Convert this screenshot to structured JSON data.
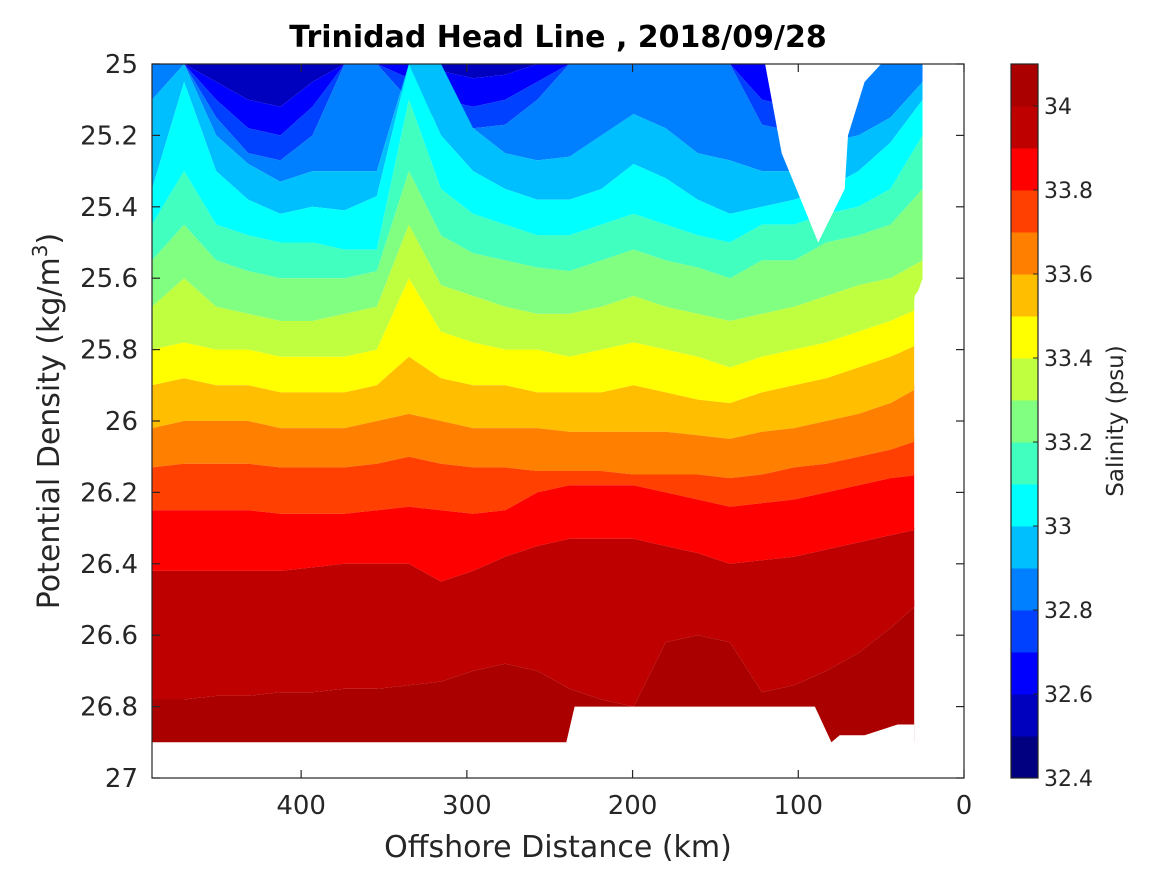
{
  "chart_data": {
    "type": "contour",
    "title": "Trinidad Head Line , 2018/09/28",
    "xlabel": "Offshore Distance (km)",
    "ylabel": "Potential Density (kg/m",
    "ylabel_sup": "3",
    "ylabel_close": ")",
    "xlim": [
      490,
      0
    ],
    "ylim": [
      25,
      27
    ],
    "x_reversed": true,
    "y_reversed": true,
    "x_ticks": [
      400,
      300,
      200,
      100,
      0
    ],
    "x_tick_labels": [
      "400",
      "300",
      "200",
      "100",
      "0"
    ],
    "y_ticks": [
      25,
      25.2,
      25.4,
      25.6,
      25.8,
      26,
      26.2,
      26.4,
      26.6,
      26.8,
      27
    ],
    "y_tick_labels": [
      "25",
      "25.2",
      "25.4",
      "25.6",
      "25.8",
      "26",
      "26.2",
      "26.4",
      "26.6",
      "26.8",
      "27"
    ],
    "colorbar": {
      "label": "Salinity (psu)",
      "min": 32.4,
      "max": 34.1,
      "levels": [
        32.4,
        32.5,
        32.6,
        32.7,
        32.8,
        32.9,
        33.0,
        33.1,
        33.2,
        33.3,
        33.4,
        33.5,
        33.6,
        33.7,
        33.8,
        33.9,
        34.0,
        34.1
      ],
      "tick_values": [
        32.4,
        32.6,
        32.8,
        33,
        33.2,
        33.4,
        33.6,
        33.8,
        34
      ],
      "tick_labels": [
        "32.4",
        "32.6",
        "32.8",
        "33",
        "33.2",
        "33.4",
        "33.6",
        "33.8",
        "34"
      ],
      "colors": [
        "#000080",
        "#0000bf",
        "#0000ff",
        "#0040ff",
        "#0080ff",
        "#00bfff",
        "#00ffff",
        "#40ffbf",
        "#80ff80",
        "#bfff40",
        "#ffff00",
        "#ffbf00",
        "#ff8000",
        "#ff4000",
        "#ff0000",
        "#bf0000",
        "#aa0000"
      ]
    },
    "domain_right_km": [
      25,
      25,
      25,
      25,
      25,
      25,
      25,
      30,
      30,
      30,
      30,
      30,
      30,
      30,
      30,
      30,
      30,
      30,
      30
    ],
    "domain_right_rho": [
      25.0,
      25.2,
      25.4,
      25.5,
      25.55,
      25.6,
      25.62,
      25.65,
      25.7,
      25.8,
      25.9,
      26.0,
      26.2,
      26.4,
      26.6,
      26.8,
      26.9,
      26.95,
      27.0
    ],
    "boundaries": [
      {
        "level": 32.6,
        "rho": [
          25.0,
          25.0,
          25.05,
          25.1,
          25.12,
          25.05,
          25.0,
          25.0,
          25.0,
          25.02,
          25.04,
          25.03,
          25.0,
          25.0,
          25.0,
          25.0,
          25.0,
          25.0,
          25.0,
          25.0,
          25.0,
          25.0,
          25.0,
          25.0,
          25.0
        ]
      },
      {
        "level": 32.7,
        "rho": [
          25.0,
          25.0,
          25.1,
          25.18,
          25.2,
          25.12,
          25.0,
          25.0,
          25.04,
          25.1,
          25.12,
          25.1,
          25.05,
          25.0,
          25.0,
          25.0,
          25.0,
          25.0,
          25.0,
          25.1,
          25.12,
          25.0,
          25.0,
          25.0,
          25.0
        ]
      },
      {
        "level": 32.8,
        "rho": [
          25.0,
          25.0,
          25.15,
          25.25,
          25.27,
          25.2,
          25.0,
          25.0,
          25.1,
          25.16,
          25.18,
          25.17,
          25.1,
          25.0,
          25.0,
          25.0,
          25.0,
          25.0,
          25.0,
          25.17,
          25.19,
          25.05,
          25.0,
          25.0,
          25.0
        ]
      },
      {
        "level": 32.9,
        "rho": [
          25.1,
          25.0,
          25.2,
          25.28,
          25.33,
          25.3,
          25.3,
          25.3,
          25.0,
          25.0,
          25.18,
          25.25,
          25.27,
          25.26,
          25.2,
          25.14,
          25.18,
          25.25,
          25.27,
          25.3,
          25.3,
          25.22,
          25.2,
          25.15,
          25.05
        ]
      },
      {
        "level": 33.0,
        "rho": [
          25.35,
          25.05,
          25.3,
          25.38,
          25.42,
          25.4,
          25.41,
          25.37,
          25.0,
          25.2,
          25.3,
          25.35,
          25.38,
          25.38,
          25.35,
          25.28,
          25.32,
          25.38,
          25.42,
          25.4,
          25.38,
          25.35,
          25.3,
          25.22,
          25.1
        ]
      },
      {
        "level": 33.1,
        "rho": [
          25.45,
          25.3,
          25.45,
          25.48,
          25.5,
          25.5,
          25.52,
          25.52,
          25.1,
          25.35,
          25.42,
          25.45,
          25.48,
          25.48,
          25.45,
          25.42,
          25.45,
          25.48,
          25.5,
          25.45,
          25.45,
          25.42,
          25.4,
          25.35,
          25.2
        ]
      },
      {
        "level": 33.2,
        "rho": [
          25.55,
          25.45,
          25.55,
          25.58,
          25.6,
          25.6,
          25.6,
          25.58,
          25.3,
          25.48,
          25.53,
          25.55,
          25.57,
          25.58,
          25.55,
          25.52,
          25.55,
          25.57,
          25.6,
          25.55,
          25.55,
          25.5,
          25.48,
          25.45,
          25.35
        ]
      },
      {
        "level": 33.3,
        "rho": [
          25.68,
          25.6,
          25.68,
          25.7,
          25.72,
          25.72,
          25.7,
          25.68,
          25.45,
          25.62,
          25.65,
          25.68,
          25.7,
          25.7,
          25.68,
          25.65,
          25.68,
          25.7,
          25.72,
          25.7,
          25.68,
          25.65,
          25.62,
          25.6,
          25.55
        ]
      },
      {
        "level": 33.4,
        "rho": [
          25.8,
          25.78,
          25.8,
          25.8,
          25.82,
          25.82,
          25.82,
          25.8,
          25.6,
          25.75,
          25.78,
          25.8,
          25.8,
          25.82,
          25.8,
          25.78,
          25.8,
          25.82,
          25.85,
          25.82,
          25.8,
          25.78,
          25.75,
          25.72,
          25.68
        ]
      },
      {
        "level": 33.5,
        "rho": [
          25.9,
          25.88,
          25.9,
          25.9,
          25.92,
          25.92,
          25.92,
          25.9,
          25.82,
          25.88,
          25.9,
          25.9,
          25.92,
          25.92,
          25.92,
          25.9,
          25.92,
          25.94,
          25.95,
          25.92,
          25.9,
          25.88,
          25.85,
          25.82,
          25.78
        ]
      },
      {
        "level": 33.6,
        "rho": [
          26.02,
          26.0,
          26.0,
          26.0,
          26.02,
          26.02,
          26.02,
          26.0,
          25.98,
          26.0,
          26.02,
          26.02,
          26.02,
          26.03,
          26.03,
          26.03,
          26.03,
          26.04,
          26.05,
          26.03,
          26.02,
          26.0,
          25.98,
          25.95,
          25.9
        ]
      },
      {
        "level": 33.7,
        "rho": [
          26.13,
          26.12,
          26.12,
          26.12,
          26.13,
          26.13,
          26.13,
          26.12,
          26.1,
          26.12,
          26.13,
          26.13,
          26.14,
          26.14,
          26.14,
          26.15,
          26.15,
          26.15,
          26.16,
          26.15,
          26.13,
          26.12,
          26.1,
          26.08,
          26.05
        ]
      },
      {
        "level": 33.8,
        "rho": [
          26.25,
          26.25,
          26.25,
          26.25,
          26.26,
          26.26,
          26.26,
          26.25,
          26.24,
          26.25,
          26.26,
          26.25,
          26.2,
          26.18,
          26.18,
          26.18,
          26.2,
          26.22,
          26.24,
          26.23,
          26.22,
          26.2,
          26.18,
          26.16,
          26.15
        ]
      },
      {
        "level": 33.9,
        "rho": [
          26.42,
          26.42,
          26.42,
          26.42,
          26.42,
          26.41,
          26.4,
          26.4,
          26.4,
          26.45,
          26.42,
          26.38,
          26.35,
          26.33,
          26.33,
          26.33,
          26.35,
          26.37,
          26.4,
          26.39,
          26.38,
          26.36,
          26.34,
          26.32,
          26.3
        ]
      },
      {
        "level": 34.0,
        "rho": [
          26.78,
          26.78,
          26.77,
          26.77,
          26.76,
          26.76,
          26.75,
          26.75,
          26.74,
          26.73,
          26.7,
          26.68,
          26.7,
          26.75,
          26.78,
          26.8,
          26.62,
          26.6,
          26.62,
          26.76,
          26.74,
          26.7,
          26.65,
          26.58,
          26.5
        ]
      }
    ],
    "white_gaps": [
      {
        "name": "shallow-nearshore-gap",
        "x": [
          120,
          110,
          95,
          88,
          72,
          70,
          60,
          50,
          40,
          38,
          40,
          120
        ],
        "rho": [
          25.0,
          25.25,
          25.42,
          25.5,
          25.35,
          25.2,
          25.05,
          25.0,
          25.0,
          25.2,
          25.0,
          25.0
        ]
      },
      {
        "name": "deep-seafloor-gap",
        "x": [
          240,
          235,
          90,
          80,
          75,
          60,
          40,
          30,
          30,
          20,
          20,
          0,
          0,
          490,
          490,
          240
        ],
        "rho": [
          26.9,
          26.8,
          26.8,
          26.9,
          26.88,
          26.88,
          26.85,
          26.85,
          26.9,
          26.9,
          26.62,
          26.62,
          27.0,
          27.0,
          26.9,
          26.9
        ]
      }
    ]
  }
}
